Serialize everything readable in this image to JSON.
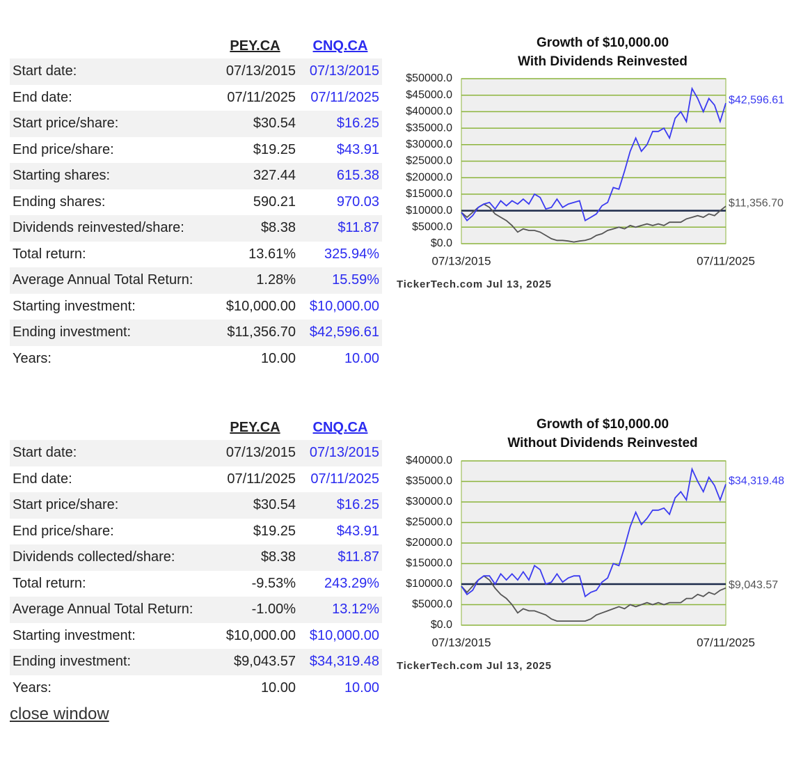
{
  "tables": [
    {
      "headers": [
        "PEY.CA",
        "CNQ.CA"
      ],
      "rows": [
        [
          "Start date:",
          "07/13/2015",
          "07/13/2015"
        ],
        [
          "End date:",
          "07/11/2025",
          "07/11/2025"
        ],
        [
          "Start price/share:",
          "$30.54",
          "$16.25"
        ],
        [
          "End price/share:",
          "$19.25",
          "$43.91"
        ],
        [
          "Starting shares:",
          "327.44",
          "615.38"
        ],
        [
          "Ending shares:",
          "590.21",
          "970.03"
        ],
        [
          "Dividends reinvested/share:",
          "$8.38",
          "$11.87"
        ],
        [
          "Total return:",
          "13.61%",
          "325.94%"
        ],
        [
          "Average Annual Total Return:",
          "1.28%",
          "15.59%"
        ],
        [
          "Starting investment:",
          "$10,000.00",
          "$10,000.00"
        ],
        [
          "Ending investment:",
          "$11,356.70",
          "$42,596.61"
        ],
        [
          "Years:",
          "10.00",
          "10.00"
        ]
      ]
    },
    {
      "headers": [
        "PEY.CA",
        "CNQ.CA"
      ],
      "rows": [
        [
          "Start date:",
          "07/13/2015",
          "07/13/2015"
        ],
        [
          "End date:",
          "07/11/2025",
          "07/11/2025"
        ],
        [
          "Start price/share:",
          "$30.54",
          "$16.25"
        ],
        [
          "End price/share:",
          "$19.25",
          "$43.91"
        ],
        [
          "Dividends collected/share:",
          "$8.38",
          "$11.87"
        ],
        [
          "Total return:",
          "-9.53%",
          "243.29%"
        ],
        [
          "Average Annual Total Return:",
          "-1.00%",
          "13.12%"
        ],
        [
          "Starting investment:",
          "$10,000.00",
          "$10,000.00"
        ],
        [
          "Ending investment:",
          "$9,043.57",
          "$34,319.48"
        ],
        [
          "Years:",
          "10.00",
          "10.00"
        ]
      ]
    }
  ],
  "chart_data": [
    {
      "type": "line",
      "title": "Growth of $10,000.00",
      "subtitle": "With Dividends Reinvested",
      "categories": [
        "07/13/2015",
        null,
        null,
        null,
        null,
        null,
        null,
        null,
        null,
        null,
        null,
        null,
        null,
        null,
        null,
        null,
        null,
        null,
        null,
        null,
        null,
        null,
        null,
        null,
        null,
        null,
        null,
        null,
        null,
        null,
        null,
        null,
        null,
        null,
        null,
        null,
        null,
        null,
        null,
        null,
        null,
        null,
        null,
        null,
        null,
        null,
        null,
        "07/11/2025"
      ],
      "series": [
        {
          "name": "PEY.CA",
          "color": "#555555",
          "end_label": "$11,356.70",
          "values": [
            9500,
            8000,
            9500,
            11000,
            12000,
            11000,
            9000,
            8000,
            7000,
            5500,
            3500,
            4500,
            4000,
            4000,
            3500,
            2500,
            1500,
            1000,
            1000,
            800,
            500,
            800,
            1000,
            1500,
            2500,
            3000,
            4000,
            4500,
            5000,
            4500,
            5500,
            5000,
            5500,
            6000,
            5500,
            6000,
            5500,
            6500,
            6500,
            6500,
            7500,
            8000,
            8500,
            8000,
            9000,
            8500,
            10000,
            11356.7
          ]
        },
        {
          "name": "CNQ.CA",
          "color": "#3a3af0",
          "end_label": "$42,596.61",
          "values": [
            9500,
            7000,
            8500,
            11000,
            12000,
            12500,
            10500,
            13000,
            11500,
            13000,
            12000,
            13500,
            12000,
            15000,
            14000,
            10500,
            11000,
            13500,
            11000,
            12000,
            12500,
            13000,
            7000,
            8000,
            9000,
            11500,
            12500,
            17000,
            16500,
            22000,
            28000,
            32000,
            28000,
            30000,
            34000,
            34000,
            35000,
            32000,
            38000,
            40000,
            37000,
            47000,
            44000,
            40000,
            44000,
            42000,
            37000,
            42596.61
          ]
        }
      ],
      "hline": {
        "value": 10000,
        "color": "#1c2a4a"
      },
      "ylim": [
        0,
        50000
      ],
      "yticks": [
        {
          "value": 0,
          "label": "$0.0"
        },
        {
          "value": 5000,
          "label": "$5000.0"
        },
        {
          "value": 10000,
          "label": "$10000.0"
        },
        {
          "value": 15000,
          "label": "$15000.0"
        },
        {
          "value": 20000,
          "label": "$20000.0"
        },
        {
          "value": 25000,
          "label": "$25000.0"
        },
        {
          "value": 30000,
          "label": "$30000.0"
        },
        {
          "value": 35000,
          "label": "$35000.0"
        },
        {
          "value": 40000,
          "label": "$40000.0"
        },
        {
          "value": 45000,
          "label": "$45000.0"
        },
        {
          "value": 50000,
          "label": "$50000.0"
        }
      ],
      "grid": true,
      "grid_color": "#8cb43c",
      "source": "TickerTech.com  Jul 13, 2025"
    },
    {
      "type": "line",
      "title": "Growth of $10,000.00",
      "subtitle": "Without Dividends Reinvested",
      "categories": [
        "07/13/2015",
        null,
        null,
        null,
        null,
        null,
        null,
        null,
        null,
        null,
        null,
        null,
        null,
        null,
        null,
        null,
        null,
        null,
        null,
        null,
        null,
        null,
        null,
        null,
        null,
        null,
        null,
        null,
        null,
        null,
        null,
        null,
        null,
        null,
        null,
        null,
        null,
        null,
        null,
        null,
        null,
        null,
        null,
        null,
        null,
        null,
        null,
        "07/11/2025"
      ],
      "series": [
        {
          "name": "PEY.CA",
          "color": "#555555",
          "end_label": "$9,043.57",
          "values": [
            9500,
            8000,
            9500,
            11000,
            12000,
            11000,
            9000,
            7500,
            6500,
            5000,
            3000,
            4000,
            3500,
            3500,
            3000,
            2500,
            1500,
            1000,
            1000,
            1000,
            1000,
            1000,
            1000,
            1500,
            2500,
            3000,
            3500,
            4000,
            4500,
            4000,
            5000,
            4500,
            5000,
            5500,
            5000,
            5500,
            5000,
            5500,
            5500,
            5500,
            6500,
            6500,
            7500,
            7000,
            8000,
            7500,
            8500,
            9043.57
          ]
        },
        {
          "name": "CNQ.CA",
          "color": "#3a3af0",
          "end_label": "$34,319.48",
          "values": [
            9500,
            7500,
            8500,
            11000,
            12000,
            12000,
            10000,
            12500,
            11000,
            12500,
            11000,
            13000,
            11000,
            14500,
            13500,
            10000,
            10500,
            12500,
            10500,
            11500,
            12000,
            12000,
            7000,
            8000,
            8500,
            10500,
            11500,
            15000,
            14500,
            19000,
            24000,
            27500,
            24500,
            26000,
            28000,
            28000,
            28500,
            27000,
            31000,
            32500,
            30500,
            38000,
            35000,
            32500,
            36000,
            34000,
            30500,
            34319.48
          ]
        }
      ],
      "hline": {
        "value": 10000,
        "color": "#1c2a4a"
      },
      "ylim": [
        0,
        40000
      ],
      "yticks": [
        {
          "value": 0,
          "label": "$0.0"
        },
        {
          "value": 5000,
          "label": "$5000.0"
        },
        {
          "value": 10000,
          "label": "$10000.0"
        },
        {
          "value": 15000,
          "label": "$15000.0"
        },
        {
          "value": 20000,
          "label": "$20000.0"
        },
        {
          "value": 25000,
          "label": "$25000.0"
        },
        {
          "value": 30000,
          "label": "$30000.0"
        },
        {
          "value": 35000,
          "label": "$35000.0"
        },
        {
          "value": 40000,
          "label": "$40000.0"
        }
      ],
      "grid": true,
      "grid_color": "#8cb43c",
      "source": "TickerTech.com  Jul 13, 2025"
    }
  ],
  "close_link": "close window"
}
